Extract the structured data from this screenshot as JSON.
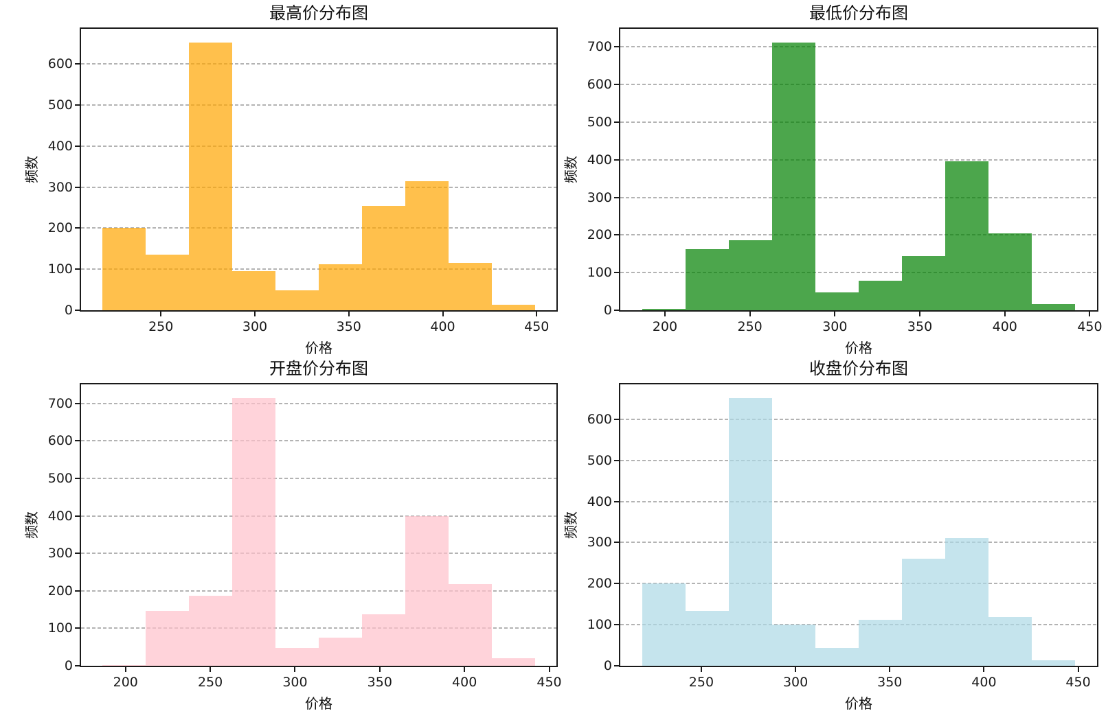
{
  "figure": {
    "background": "#ffffff",
    "grid_color": "#b3b3b3",
    "spine_color": "#1a1a1a",
    "text_color": "#111111"
  },
  "chart_data": [
    {
      "id": "highest-price-histogram",
      "type": "bar",
      "subtype": "histogram",
      "title": "最高价分布图",
      "xlabel": "价格",
      "ylabel": "频数",
      "bar_color": "#FFA500",
      "bar_alpha": 0.7,
      "bin_edges": [
        219,
        242,
        265,
        288,
        311,
        334,
        357,
        380,
        403,
        426,
        449
      ],
      "values": [
        200,
        135,
        653,
        95,
        48,
        112,
        255,
        314,
        116,
        14
      ],
      "xlim": [
        207.5,
        460.5
      ],
      "ylim": [
        0,
        686
      ],
      "xticks": [
        250,
        300,
        350,
        400,
        450
      ],
      "yticks": [
        0,
        100,
        200,
        300,
        400,
        500,
        600
      ],
      "grid": {
        "axis": "y",
        "style": "dashed",
        "color": "#b3b3b3"
      },
      "legend": null
    },
    {
      "id": "lowest-price-histogram",
      "type": "bar",
      "subtype": "histogram",
      "title": "最低价分布图",
      "xlabel": "价格",
      "ylabel": "频数",
      "bar_color": "#008000",
      "bar_alpha": 0.7,
      "bin_edges": [
        186.5,
        212,
        237.5,
        263,
        288.5,
        314,
        339.5,
        365,
        390.5,
        416,
        441.5
      ],
      "values": [
        4,
        162,
        186,
        712,
        47,
        78,
        145,
        396,
        205,
        17
      ],
      "xlim": [
        173.75,
        454.25
      ],
      "ylim": [
        0,
        748
      ],
      "xticks": [
        200,
        250,
        300,
        350,
        400,
        450
      ],
      "yticks": [
        0,
        100,
        200,
        300,
        400,
        500,
        600,
        700
      ],
      "grid": {
        "axis": "y",
        "style": "dashed",
        "color": "#b3b3b3"
      },
      "legend": null
    },
    {
      "id": "open-price-histogram",
      "type": "bar",
      "subtype": "histogram",
      "title": "开盘价分布图",
      "xlabel": "价格",
      "ylabel": "频数",
      "bar_color": "#FFC0CB",
      "bar_alpha": 0.7,
      "bin_edges": [
        186.5,
        212,
        237.5,
        263,
        288.5,
        314,
        339.5,
        365,
        390.5,
        416,
        441.5
      ],
      "values": [
        2,
        147,
        186,
        715,
        47,
        75,
        137,
        400,
        218,
        20
      ],
      "xlim": [
        173.75,
        454.25
      ],
      "ylim": [
        0,
        751
      ],
      "xticks": [
        200,
        250,
        300,
        350,
        400,
        450
      ],
      "yticks": [
        0,
        100,
        200,
        300,
        400,
        500,
        600,
        700
      ],
      "grid": {
        "axis": "y",
        "style": "dashed",
        "color": "#b3b3b3"
      },
      "legend": null
    },
    {
      "id": "close-price-histogram",
      "type": "bar",
      "subtype": "histogram",
      "title": "收盘价分布图",
      "xlabel": "价格",
      "ylabel": "频数",
      "bar_color": "#ADD8E6",
      "bar_alpha": 0.7,
      "bin_edges": [
        218.5,
        241.5,
        264.5,
        287.5,
        310.5,
        333.5,
        356.5,
        379.5,
        402.5,
        425.5,
        448.5
      ],
      "values": [
        200,
        133,
        652,
        100,
        43,
        112,
        260,
        310,
        118,
        13
      ],
      "xlim": [
        207,
        460
      ],
      "ylim": [
        0,
        685
      ],
      "xticks": [
        250,
        300,
        350,
        400,
        450
      ],
      "yticks": [
        0,
        100,
        200,
        300,
        400,
        500,
        600
      ],
      "grid": {
        "axis": "y",
        "style": "dashed",
        "color": "#b3b3b3"
      },
      "legend": null
    }
  ]
}
